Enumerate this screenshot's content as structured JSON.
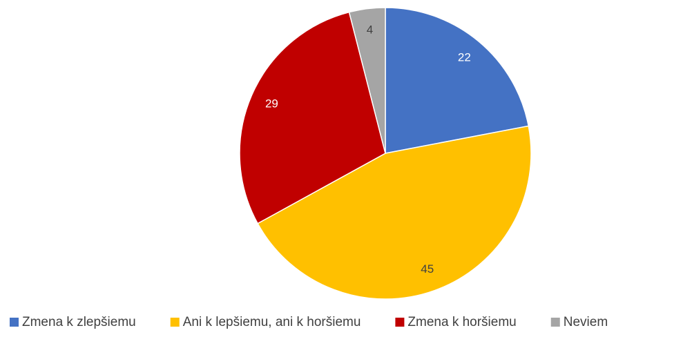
{
  "chart_data": {
    "type": "pie",
    "categories": [
      "Zmena k zlepšiemu",
      "Ani k lepšiemu, ani k horšiemu",
      "Zmena k horšiemu",
      "Neviem"
    ],
    "values": [
      22,
      45,
      29,
      4
    ],
    "colors": [
      "#4472c4",
      "#ffc000",
      "#c00000",
      "#a5a5a5"
    ],
    "label_colors": [
      "#ffffff",
      "#404040",
      "#ffffff",
      "#404040"
    ],
    "legend": "bottom"
  }
}
